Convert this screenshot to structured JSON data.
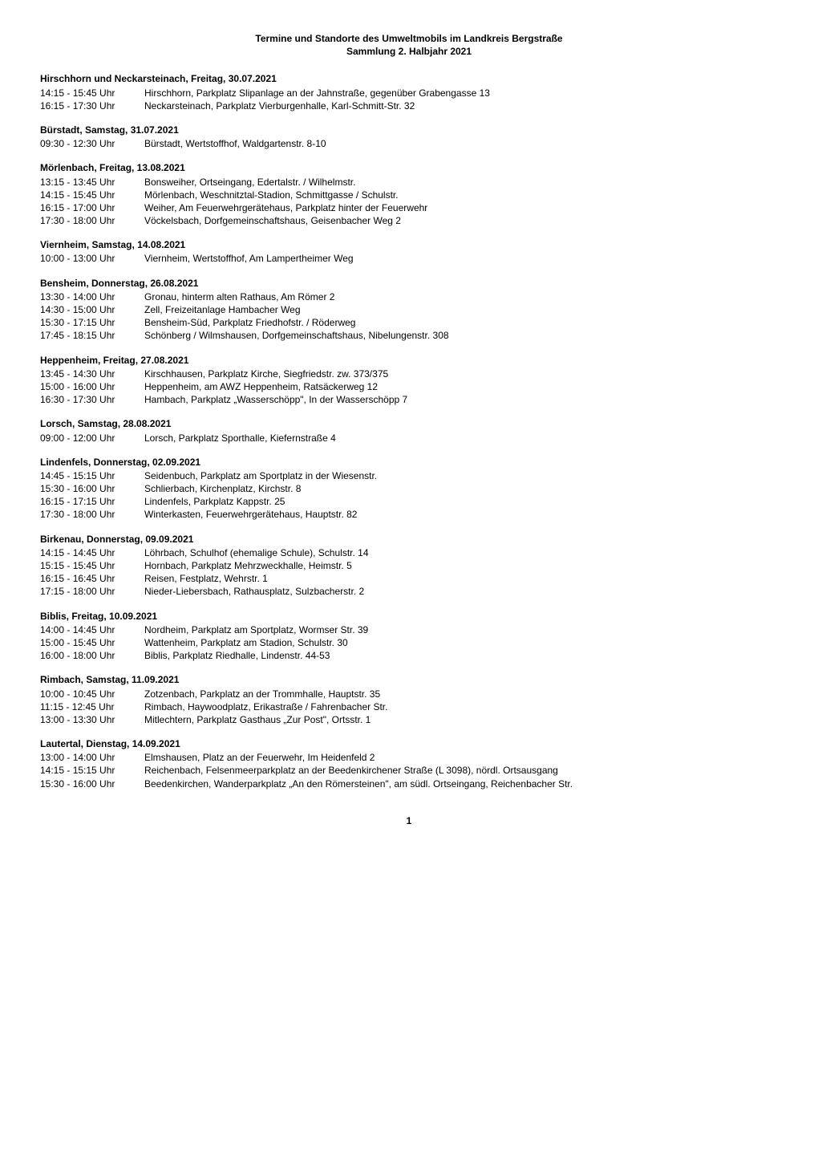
{
  "title_line1": "Termine und Standorte des Umweltmobils im Landkreis Bergstraße",
  "title_line2": "Sammlung 2. Halbjahr 2021",
  "page_number": "1",
  "sections": [
    {
      "heading": "Hirschhorn und Neckarsteinach, Freitag, 30.07.2021",
      "entries": [
        {
          "time": "14:15 - 15:45 Uhr",
          "loc": "Hirschhorn, Parkplatz Slipanlage an der Jahnstraße, gegenüber Grabengasse 13"
        },
        {
          "time": "16:15 - 17:30 Uhr",
          "loc": "Neckarsteinach, Parkplatz Vierburgenhalle, Karl-Schmitt-Str. 32"
        }
      ]
    },
    {
      "heading": "Bürstadt, Samstag, 31.07.2021",
      "entries": [
        {
          "time": "09:30 - 12:30 Uhr",
          "loc": "Bürstadt, Wertstoffhof, Waldgartenstr. 8-10"
        }
      ]
    },
    {
      "heading": "Mörlenbach, Freitag, 13.08.2021",
      "entries": [
        {
          "time": "13:15 - 13:45 Uhr",
          "loc": "Bonsweiher, Ortseingang, Edertalstr. / Wilhelmstr."
        },
        {
          "time": "14:15 - 15:45 Uhr",
          "loc": "Mörlenbach, Weschnitztal-Stadion, Schmittgasse / Schulstr."
        },
        {
          "time": "16:15 - 17:00 Uhr",
          "loc": "Weiher, Am Feuerwehrgerätehaus, Parkplatz hinter der Feuerwehr"
        },
        {
          "time": "17:30 - 18:00 Uhr",
          "loc": "Vöckelsbach, Dorfgemeinschaftshaus, Geisenbacher Weg 2"
        }
      ]
    },
    {
      "heading": "Viernheim, Samstag, 14.08.2021",
      "entries": [
        {
          "time": "10:00 - 13:00 Uhr",
          "loc": "Viernheim, Wertstoffhof, Am Lampertheimer Weg"
        }
      ]
    },
    {
      "heading": "Bensheim, Donnerstag, 26.08.2021",
      "entries": [
        {
          "time": "13:30 - 14:00 Uhr",
          "loc": "Gronau, hinterm alten Rathaus, Am Römer 2"
        },
        {
          "time": "14:30 - 15:00 Uhr",
          "loc": "Zell, Freizeitanlage Hambacher Weg"
        },
        {
          "time": "15:30 - 17:15 Uhr",
          "loc": "Bensheim-Süd, Parkplatz Friedhofstr. / Röderweg"
        },
        {
          "time": "17:45 - 18:15 Uhr",
          "loc": "Schönberg / Wilmshausen, Dorfgemeinschaftshaus, Nibelungenstr. 308"
        }
      ]
    },
    {
      "heading": "Heppenheim, Freitag, 27.08.2021",
      "entries": [
        {
          "time": "13:45 - 14:30 Uhr",
          "loc": "Kirschhausen, Parkplatz Kirche, Siegfriedstr. zw. 373/375"
        },
        {
          "time": "15:00 - 16:00 Uhr",
          "loc": "Heppenheim, am AWZ Heppenheim, Ratsäckerweg 12"
        },
        {
          "time": "16:30 - 17:30 Uhr",
          "loc": "Hambach, Parkplatz „Wasserschöpp\", In der Wasserschöpp 7"
        }
      ]
    },
    {
      "heading": "Lorsch, Samstag, 28.08.2021",
      "entries": [
        {
          "time": "09:00 - 12:00 Uhr",
          "loc": "Lorsch, Parkplatz Sporthalle, Kiefernstraße 4"
        }
      ]
    },
    {
      "heading": "Lindenfels, Donnerstag, 02.09.2021",
      "entries": [
        {
          "time": "14:45 - 15:15 Uhr",
          "loc": "Seidenbuch, Parkplatz am Sportplatz in der Wiesenstr."
        },
        {
          "time": "15:30 - 16:00 Uhr",
          "loc": "Schlierbach, Kirchenplatz, Kirchstr. 8"
        },
        {
          "time": "16:15 - 17:15 Uhr",
          "loc": "Lindenfels, Parkplatz Kappstr. 25"
        },
        {
          "time": "17:30 - 18:00 Uhr",
          "loc": "Winterkasten, Feuerwehrgerätehaus, Hauptstr. 82"
        }
      ]
    },
    {
      "heading": "Birkenau, Donnerstag, 09.09.2021",
      "entries": [
        {
          "time": "14:15 - 14:45 Uhr",
          "loc": "Löhrbach, Schulhof (ehemalige Schule), Schulstr. 14"
        },
        {
          "time": "15:15 - 15:45 Uhr",
          "loc": "Hornbach, Parkplatz Mehrzweckhalle, Heimstr. 5"
        },
        {
          "time": "16:15 - 16:45 Uhr",
          "loc": "Reisen, Festplatz, Wehrstr. 1"
        },
        {
          "time": "17:15 - 18:00 Uhr",
          "loc": "Nieder-Liebersbach, Rathausplatz, Sulzbacherstr. 2"
        }
      ]
    },
    {
      "heading": "Biblis, Freitag, 10.09.2021",
      "entries": [
        {
          "time": "14:00 - 14:45 Uhr",
          "loc": "Nordheim, Parkplatz am Sportplatz, Wormser Str. 39"
        },
        {
          "time": "15:00 - 15:45 Uhr",
          "loc": "Wattenheim, Parkplatz am Stadion, Schulstr. 30"
        },
        {
          "time": "16:00 - 18:00 Uhr",
          "loc": "Biblis, Parkplatz Riedhalle, Lindenstr. 44-53"
        }
      ]
    },
    {
      "heading": "Rimbach, Samstag, 11.09.2021",
      "entries": [
        {
          "time": "10:00 - 10:45 Uhr",
          "loc": "Zotzenbach, Parkplatz an der Trommhalle, Hauptstr. 35"
        },
        {
          "time": "11:15 - 12:45 Uhr",
          "loc": "Rimbach, Haywoodplatz, Erikastraße / Fahrenbacher Str."
        },
        {
          "time": "13:00 - 13:30 Uhr",
          "loc": "Mitlechtern, Parkplatz Gasthaus „Zur Post\", Ortsstr. 1"
        }
      ]
    },
    {
      "heading": "Lautertal, Dienstag, 14.09.2021",
      "entries": [
        {
          "time": "13:00 - 14:00 Uhr",
          "loc": "Elmshausen, Platz an der Feuerwehr, Im Heidenfeld 2"
        },
        {
          "time": "14:15 - 15:15 Uhr",
          "loc": "Reichenbach, Felsenmeerparkplatz an der Beedenkirchener Straße (L 3098), nördl. Ortsausgang"
        },
        {
          "time": "15:30 - 16:00 Uhr",
          "loc": "Beedenkirchen, Wanderparkplatz „An den Römersteinen\", am südl. Ortseingang, Reichenbacher Str."
        }
      ]
    }
  ]
}
